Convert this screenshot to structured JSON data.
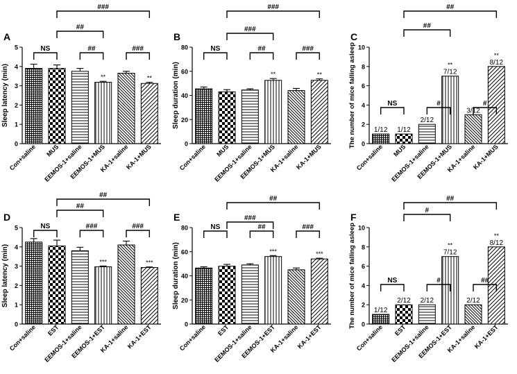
{
  "chart_data": [
    {
      "id": "A",
      "panel_label": "A",
      "type": "bar",
      "ylabel": "Sleep latency (min)",
      "ylim": [
        0,
        5
      ],
      "yticks": [
        0,
        1,
        2,
        3,
        4,
        5
      ],
      "categories": [
        "Con+saline",
        "MUS",
        "EEMOS-1+saline",
        "EEMOS-1+MUS",
        "KA-1+saline",
        "KA-1+MUS"
      ],
      "values": [
        3.9,
        3.9,
        3.75,
        3.18,
        3.65,
        3.12
      ],
      "errors": [
        0.22,
        0.18,
        0.15,
        0.05,
        0.1,
        0.06
      ],
      "patterns": [
        "hatch-grid",
        "checker",
        "hatch-h",
        "hatch-v",
        "hatch-diag-dense",
        "hatch-diag"
      ],
      "bar_labels": [
        "",
        "",
        "",
        "**",
        "",
        "**"
      ],
      "comparisons": [
        {
          "from": 0,
          "to": 1,
          "label": "NS",
          "level": 0
        },
        {
          "from": 2,
          "to": 3,
          "label": "##",
          "level": 0
        },
        {
          "from": 4,
          "to": 5,
          "label": "###",
          "level": 0
        },
        {
          "from": 1,
          "to": 3,
          "label": "##",
          "level": 1
        },
        {
          "from": 1,
          "to": 5,
          "label": "###",
          "level": 2
        }
      ]
    },
    {
      "id": "B",
      "panel_label": "B",
      "type": "bar",
      "ylabel": "Sleep duration (min)",
      "ylim": [
        0,
        80
      ],
      "yticks": [
        0,
        20,
        40,
        60,
        80
      ],
      "categories": [
        "Con+saline",
        "MUS",
        "EEMOS-1+saline",
        "EEMOS-1+MUS",
        "KA-1+saline",
        "KA-1+MUS"
      ],
      "values": [
        45.5,
        43,
        44.5,
        52.5,
        44,
        52.5
      ],
      "errors": [
        1.5,
        1.8,
        1,
        1.5,
        1.8,
        1.2
      ],
      "patterns": [
        "hatch-grid",
        "checker",
        "hatch-h",
        "hatch-v",
        "hatch-diag-dense",
        "hatch-diag"
      ],
      "bar_labels": [
        "",
        "",
        "",
        "**",
        "",
        "**"
      ],
      "comparisons": [
        {
          "from": 0,
          "to": 1,
          "label": "NS",
          "level": 0
        },
        {
          "from": 2,
          "to": 3,
          "label": "##",
          "level": 0
        },
        {
          "from": 4,
          "to": 5,
          "label": "###",
          "level": 0
        },
        {
          "from": 1,
          "to": 3,
          "label": "###",
          "level": 1
        },
        {
          "from": 1,
          "to": 5,
          "label": "###",
          "level": 2
        }
      ]
    },
    {
      "id": "C",
      "panel_label": "C",
      "type": "bar",
      "ylabel": "The number of mice falling asleep",
      "ylim": [
        0,
        10
      ],
      "yticks": [
        0,
        2,
        4,
        6,
        8,
        10
      ],
      "categories": [
        "Con+saline",
        "MUS",
        "EEMOS-1+saline",
        "EEMOS-1+MUS",
        "KA-1+saline",
        "KA-1+MUS"
      ],
      "values": [
        1,
        1,
        2,
        7,
        3,
        8
      ],
      "errors": [
        0,
        0,
        0,
        0,
        0,
        0
      ],
      "patterns": [
        "hatch-grid",
        "checker",
        "hatch-h",
        "hatch-v",
        "hatch-diag-dense",
        "hatch-diag"
      ],
      "bar_labels": [
        "1/12",
        "1/12",
        "2/12",
        "7/12",
        "3/12",
        "8/12"
      ],
      "bar_stars": [
        "",
        "",
        "",
        "**",
        "",
        "**"
      ],
      "comparisons": [
        {
          "from": 0,
          "to": 1,
          "label": "NS",
          "level": 0
        },
        {
          "from": 2,
          "to": 3,
          "label": "#",
          "level": 0
        },
        {
          "from": 4,
          "to": 5,
          "label": "#",
          "level": 0
        },
        {
          "from": 1,
          "to": 3,
          "label": "##",
          "level": 1
        },
        {
          "from": 1,
          "to": 5,
          "label": "##",
          "level": 2
        }
      ]
    },
    {
      "id": "D",
      "panel_label": "D",
      "type": "bar",
      "ylabel": "Sleep latency (min)",
      "ylim": [
        0,
        5
      ],
      "yticks": [
        0,
        1,
        2,
        3,
        4,
        5
      ],
      "categories": [
        "Con+saline",
        "EST",
        "EEMOS-1+saline",
        "EEMOS-1+EST",
        "KA-1+saline",
        "KA-1+EST"
      ],
      "values": [
        4.25,
        4.05,
        3.8,
        2.97,
        4.1,
        2.93
      ],
      "errors": [
        0.18,
        0.3,
        0.18,
        0.04,
        0.2,
        0.03
      ],
      "patterns": [
        "hatch-grid",
        "checker",
        "hatch-h",
        "hatch-v",
        "hatch-diag-dense",
        "hatch-diag"
      ],
      "bar_labels": [
        "",
        "",
        "",
        "***",
        "",
        "***"
      ],
      "comparisons": [
        {
          "from": 0,
          "to": 1,
          "label": "NS",
          "level": 0
        },
        {
          "from": 2,
          "to": 3,
          "label": "###",
          "level": 0
        },
        {
          "from": 4,
          "to": 5,
          "label": "###",
          "level": 0
        },
        {
          "from": 1,
          "to": 3,
          "label": "##",
          "level": 1
        },
        {
          "from": 1,
          "to": 5,
          "label": "##",
          "level": 2
        }
      ]
    },
    {
      "id": "E",
      "panel_label": "E",
      "type": "bar",
      "ylabel": "Sleep duration (min)",
      "ylim": [
        0,
        80
      ],
      "yticks": [
        0,
        20,
        40,
        60,
        80
      ],
      "categories": [
        "Con+saline",
        "EST",
        "EEMOS-1+saline",
        "EEMOS-1+EST",
        "KA-1+saline",
        "KA-1+EST"
      ],
      "values": [
        46.5,
        48,
        49,
        56,
        45,
        54
      ],
      "errors": [
        1,
        1.5,
        1,
        0.8,
        1.5,
        0.6
      ],
      "patterns": [
        "hatch-grid",
        "checker",
        "hatch-h",
        "hatch-v",
        "hatch-diag-dense",
        "hatch-diag"
      ],
      "bar_labels": [
        "",
        "",
        "",
        "***",
        "",
        "***"
      ],
      "comparisons": [
        {
          "from": 0,
          "to": 1,
          "label": "NS",
          "level": 0
        },
        {
          "from": 2,
          "to": 3,
          "label": "##",
          "level": 0
        },
        {
          "from": 4,
          "to": 5,
          "label": "###",
          "level": 0
        },
        {
          "from": 1,
          "to": 3,
          "label": "###",
          "level": 1
        },
        {
          "from": 1,
          "to": 5,
          "label": "##",
          "level": 2
        }
      ]
    },
    {
      "id": "F",
      "panel_label": "F",
      "type": "bar",
      "ylabel": "The number of mice falling asleep",
      "ylim": [
        0,
        10
      ],
      "yticks": [
        0,
        2,
        4,
        6,
        8,
        10
      ],
      "categories": [
        "Con+saline",
        "EST",
        "EEMOS-1+saline",
        "EEMOS-1+EST",
        "KA-1+saline",
        "KA-1+EST"
      ],
      "values": [
        1,
        2,
        2,
        7,
        2,
        8
      ],
      "errors": [
        0,
        0,
        0,
        0,
        0,
        0
      ],
      "patterns": [
        "hatch-grid",
        "checker",
        "hatch-h",
        "hatch-v",
        "hatch-diag-dense",
        "hatch-diag"
      ],
      "bar_labels": [
        "1/12",
        "2/12",
        "2/12",
        "7/12",
        "2/12",
        "8/12"
      ],
      "bar_stars": [
        "",
        "",
        "",
        "**",
        "",
        "**"
      ],
      "comparisons": [
        {
          "from": 0,
          "to": 1,
          "label": "NS",
          "level": 0
        },
        {
          "from": 2,
          "to": 3,
          "label": "#",
          "level": 0
        },
        {
          "from": 4,
          "to": 5,
          "label": "##",
          "level": 0
        },
        {
          "from": 1,
          "to": 3,
          "label": "#",
          "level": 1
        },
        {
          "from": 1,
          "to": 5,
          "label": "##",
          "level": 2
        }
      ]
    }
  ]
}
